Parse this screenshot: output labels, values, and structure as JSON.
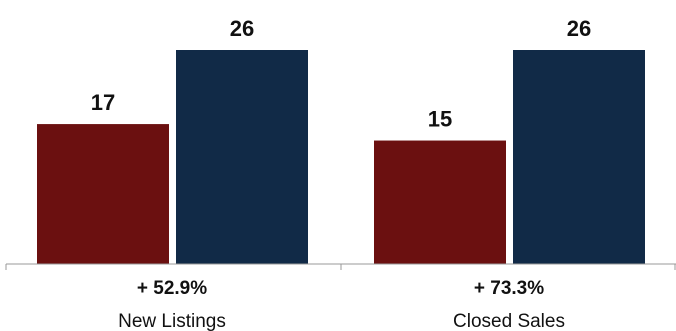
{
  "chart_data": {
    "type": "bar",
    "categories": [
      "New Listings",
      "Closed Sales"
    ],
    "series": [
      {
        "values": [
          17,
          15
        ],
        "color": "#6b1010"
      },
      {
        "values": [
          26,
          26
        ],
        "color": "#112a47"
      }
    ],
    "changes": [
      "+ 52.9%",
      "+ 73.3%"
    ],
    "ylim": [
      0,
      26
    ],
    "grid": false,
    "legend": "none"
  }
}
